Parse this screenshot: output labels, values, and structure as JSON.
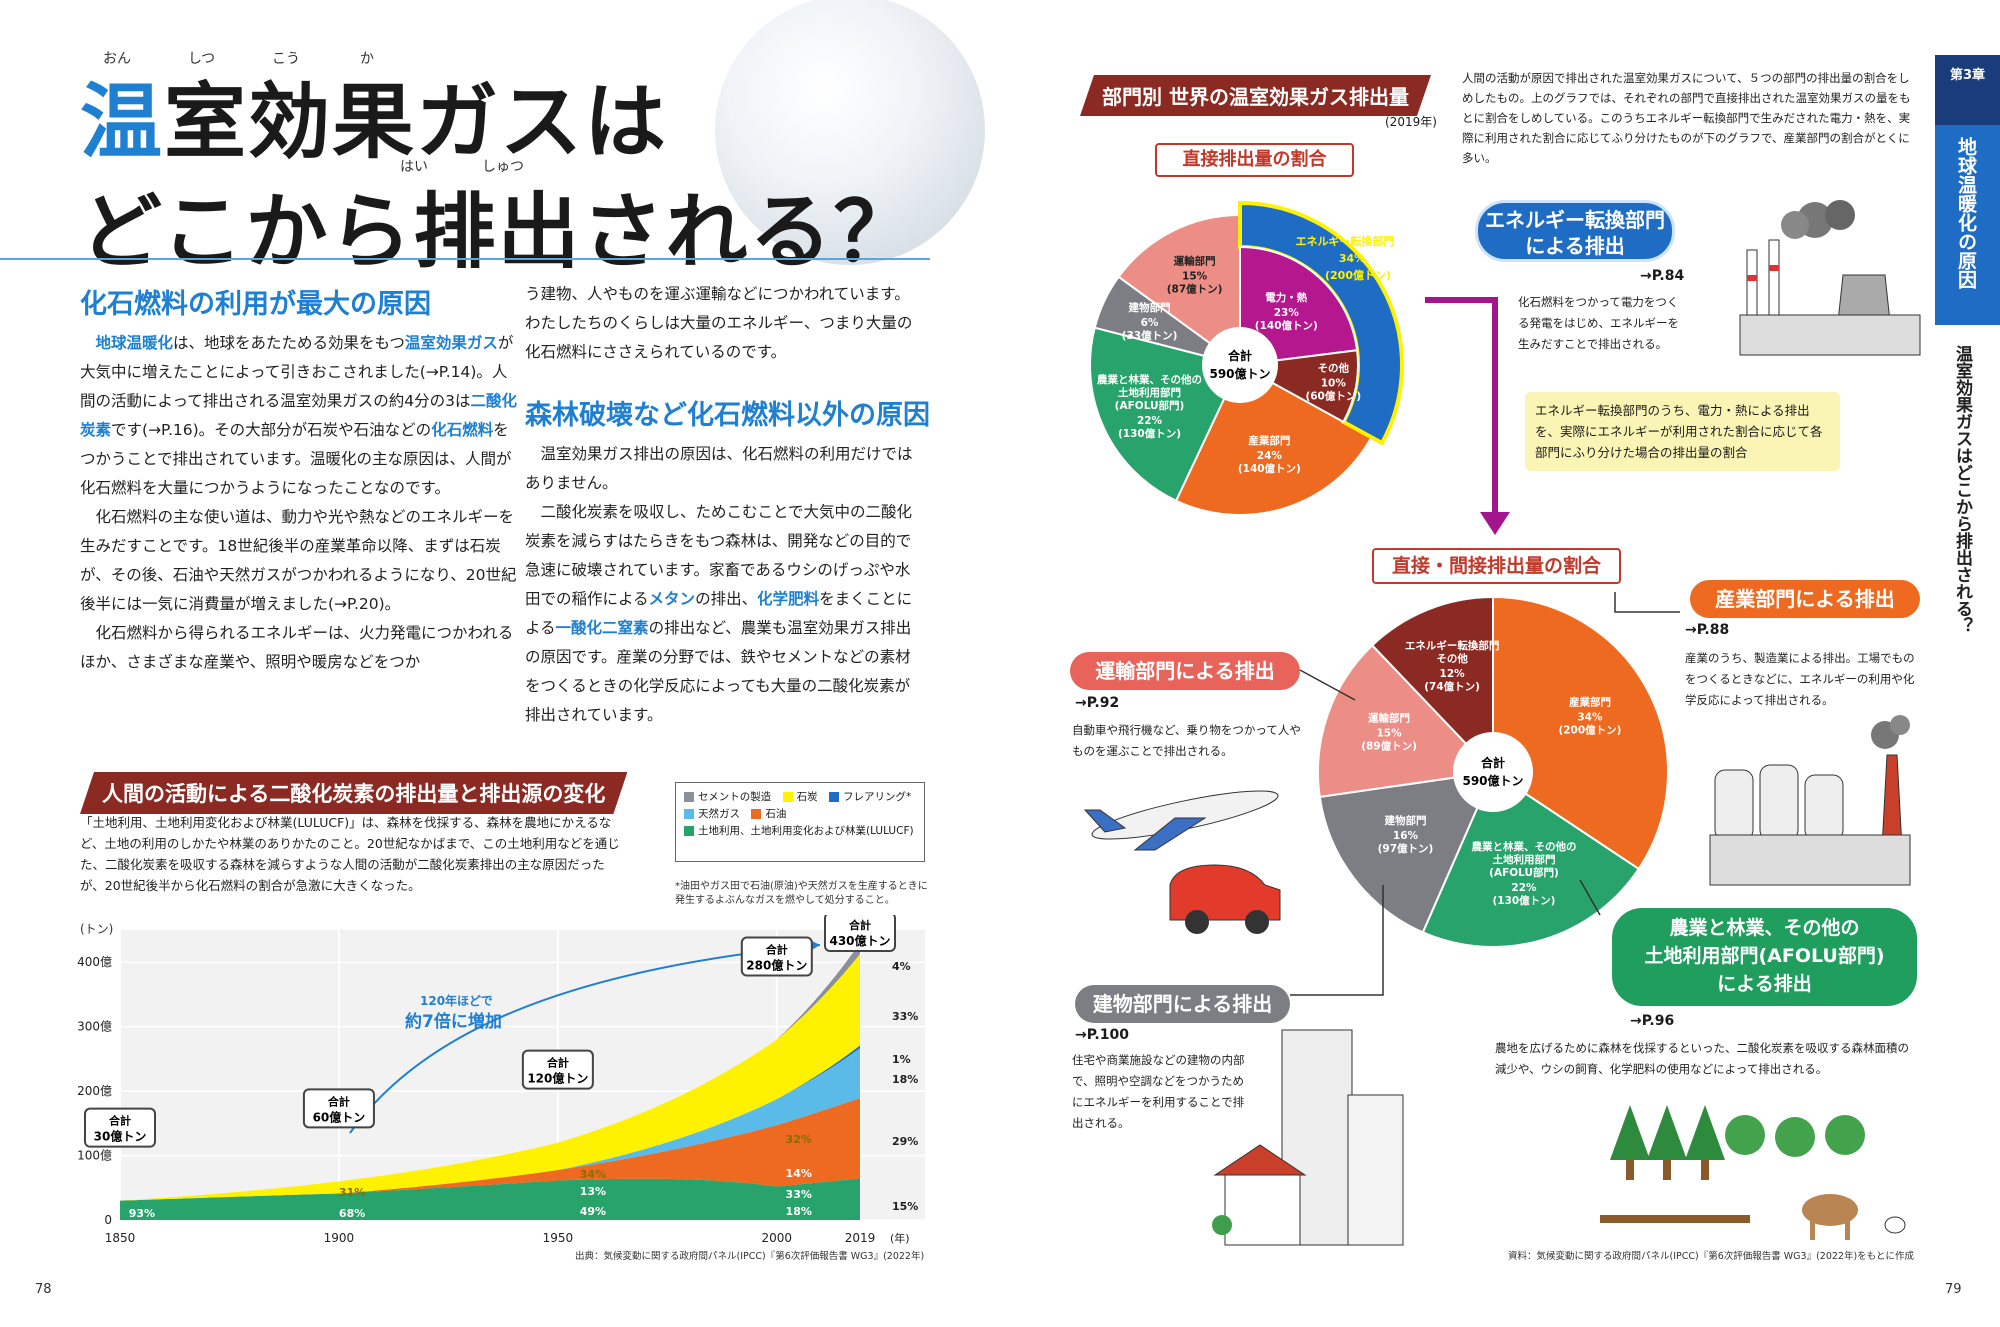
{
  "title": {
    "line1_blue": "温",
    "line1_rest": "室効果ガスは",
    "line2": "どこから排出される？",
    "rubies": [
      "おん",
      "しつ",
      "こう",
      "か",
      "はい",
      "しゅつ"
    ]
  },
  "section1": {
    "heading": "化石燃料の利用が最大の原因",
    "p1a": "地球温暖化",
    "p1b": "は、地球をあたためる効果をもつ",
    "p1c": "温室効果ガス",
    "p1d": "が大気中に増えたことによって引きおこされました(→P.14)。人間の活動によって排出される温室効果ガスの約4分の3は",
    "p1e": "二酸化炭素",
    "p1f": "です(→P.16)。その大部分が石炭や石油などの",
    "p1g": "化石燃料",
    "p1h": "をつかうことで排出されています。温暖化の主な原因は、人間が化石燃料を大量につかうようになったことなのです。",
    "p2": "化石燃料の主な使い道は、動力や光や熱などのエネルギーを生みだすことです。18世紀後半の産業革命以降、まずは石炭が、その後、石油や天然ガスがつかわれるようになり、20世紀後半には一気に消費量が増えました(→P.20)。",
    "p3": "化石燃料から得られるエネルギーは、火力発電につかわれるほか、さまざまな産業や、照明や暖房などをつか",
    "p3b": "う建物、人やものを運ぶ運輸などにつかわれています。わたしたちのくらしは大量のエネルギー、つまり大量の化石燃料にささえられているのです。"
  },
  "section2": {
    "heading": "森林破壊など化石燃料以外の原因",
    "p1": "温室効果ガス排出の原因は、化石燃料の利用だけではありません。",
    "p2a": "二酸化炭素を吸収し、ためこむことで大気中の二酸化炭素を減らすはたらきをもつ森林は、開発などの目的で急速に破壊されています。家畜であるウシのげっぷや水田での稲作による",
    "p2b": "メタン",
    "p2c": "の排出、",
    "p2d": "化学肥料",
    "p2e": "をまくことによる",
    "p2f": "一酸化二窒素",
    "p2g": "の排出など、農業も温室効果ガス排出の原因です。産業の分野では、鉄やセメントなどの素材をつくるときの化学反応によっても大量の二酸化炭素が排出されています。"
  },
  "co2_chart": {
    "banner": "人間の活動による二酸化炭素の排出量と排出源の変化",
    "desc": "「土地利用、土地利用変化および林業(LULUCF)」は、森林を伐採する、森林を農地にかえるなど、土地の利用のしかたや林業のありかたのこと。20世紀なかばまで、この土地利用などを通じた、二酸化炭素を吸収する森林を減らすような人間の活動が二酸化炭素排出の主な原因だったが、20世紀後半から化石燃料の割合が急激に大きくなった。",
    "legend": [
      {
        "label": "セメントの製造",
        "color": "#8a8f99"
      },
      {
        "label": "石炭",
        "color": "#fff200"
      },
      {
        "label": "フレアリング*",
        "color": "#1f6cc4"
      },
      {
        "label": "天然ガス",
        "color": "#5bbbe8"
      },
      {
        "label": "石油",
        "color": "#ef6a21"
      },
      {
        "label": "土地利用、土地利用変化および林業(LULUCF)",
        "color": "#27a36b"
      }
    ],
    "legend_note": "*油田やガス田で石油(原油)や天然ガスを生産するときに発生するよぶんなガスを燃やして処分すること。",
    "yunit": "(トン)",
    "yticks": [
      "400億",
      "300億",
      "200億",
      "100億",
      "0"
    ],
    "xticks": [
      "1850",
      "1900",
      "1950",
      "2000",
      "2019"
    ],
    "xunit": "(年)",
    "callouts": [
      {
        "l1": "合計",
        "l2": "30億トン"
      },
      {
        "l1": "合計",
        "l2": "60億トン"
      },
      {
        "l1": "合計",
        "l2": "120億トン"
      },
      {
        "l1": "合計",
        "l2": "280億トン"
      },
      {
        "l1": "合計",
        "l2": "430億トン"
      }
    ],
    "arrow_note1": "120年ほどで",
    "arrow_note2": "約7倍に増加",
    "inner_pcts": [
      "93%",
      "31%",
      "68%",
      "34%",
      "13%",
      "49%",
      "32%",
      "14%",
      "33%",
      "18%"
    ],
    "right_pcts": [
      "4%",
      "33%",
      "1%",
      "18%",
      "29%",
      "15%"
    ],
    "source": "出典：気候変動に関する政府間パネル(IPCC)『第6次評価報告書 WG3』(2022年)",
    "chart_data": {
      "type": "area",
      "x": [
        1850,
        1900,
        1950,
        2000,
        2019
      ],
      "totals": [
        30,
        60,
        120,
        280,
        430
      ],
      "unit": "億トン",
      "ylim": [
        0,
        450
      ],
      "series": [
        {
          "name": "土地利用、土地利用変化および林業(LULUCF)",
          "pct": [
            93,
            68,
            49,
            18,
            15
          ]
        },
        {
          "name": "石油",
          "pct": [
            null,
            null,
            13,
            33,
            29
          ]
        },
        {
          "name": "天然ガス",
          "pct": [
            null,
            null,
            null,
            14,
            18
          ]
        },
        {
          "name": "フレアリング",
          "pct": [
            null,
            null,
            null,
            null,
            1
          ]
        },
        {
          "name": "石炭",
          "pct": [
            null,
            31,
            34,
            32,
            33
          ]
        },
        {
          "name": "セメントの製造",
          "pct": [
            null,
            null,
            null,
            null,
            4
          ]
        }
      ]
    }
  },
  "right": {
    "banner": "部門別 世界の温室効果ガス排出量",
    "year": "(2019年)",
    "intro": "人間の活動が原因で排出された温室効果ガスについて、５つの部門の排出量の割合をしめしたもの。上のグラフでは、それぞれの部門で直接排出された温室効果ガスの量をもとに割合をしめしている。このうちエネルギー転換部門で生みだされた電力・熱を、実際に利用された割合に応じてふり分けたものが下のグラフで、産業部門の割合がとくに多い。",
    "pie1_head": "直接排出量の割合",
    "pie2_head": "直接・間接排出量の割合",
    "total_l1": "合計",
    "total_l2": "590億トン",
    "pie1": [
      {
        "name": "エネルギー転換部門",
        "pct": "34%",
        "amt": "(200億トン)",
        "color": "#1f6cc4"
      },
      {
        "name": "電力・熱",
        "pct": "23%",
        "amt": "(140億トン)",
        "color": "#b5178f"
      },
      {
        "name": "その他",
        "pct": "10%",
        "amt": "(60億トン)",
        "color": "#8b2a22"
      },
      {
        "name": "産業部門",
        "pct": "24%",
        "amt": "(140億トン)",
        "color": "#ef6a21"
      },
      {
        "name": "農業と林業、その他の土地利用部門(AFOLU部門)",
        "pct": "22%",
        "amt": "(130億トン)",
        "color": "#27a36b"
      },
      {
        "name": "建物部門",
        "pct": "6%",
        "amt": "(33億トン)",
        "color": "#7d7d84"
      },
      {
        "name": "運輸部門",
        "pct": "15%",
        "amt": "(87億トン)",
        "color": "#ec8d86"
      }
    ],
    "pie2": [
      {
        "name": "産業部門",
        "pct": "34%",
        "amt": "(200億トン)",
        "color": "#ef6a21"
      },
      {
        "name": "農業と林業、その他の土地利用部門(AFOLU部門)",
        "pct": "22%",
        "amt": "(130億トン)",
        "color": "#27a36b"
      },
      {
        "name": "建物部門",
        "pct": "16%",
        "amt": "(97億トン)",
        "color": "#7d7d84"
      },
      {
        "name": "運輸部門",
        "pct": "15%",
        "amt": "(89億トン)",
        "color": "#ec8d86"
      },
      {
        "name": "エネルギー転換部門 その他",
        "pct": "12%",
        "amt": "(74億トン)",
        "color": "#8b2a22"
      }
    ],
    "energy_pill": "エネルギー転換部門による排出",
    "energy_ref": "→P.84",
    "energy_desc": "化石燃料をつかって電力をつくる発電をはじめ、エネルギーを生みだすことで排出される。",
    "yellow_note": "エネルギー転換部門のうち、電力・熱による排出を、実際にエネルギーが利用された割合に応じて各部門にふり分けた場合の排出量の割合",
    "transport_pill": "運輸部門による排出",
    "transport_ref": "→P.92",
    "transport_desc": "自動車や飛行機など、乗り物をつかって人やものを運ぶことで排出される。",
    "industry_pill": "産業部門による排出",
    "industry_ref": "→P.88",
    "industry_desc": "産業のうち、製造業による排出。工場でものをつくるときなどに、エネルギーの利用や化学反応によって排出される。",
    "building_pill": "建物部門による排出",
    "building_ref": "→P.100",
    "building_desc": "住宅や商業施設などの建物の内部で、照明や空調などをつかうためにエネルギーを利用することで排出される。",
    "afolu_pill_l1": "農業と林業、その他の",
    "afolu_pill_l2": "土地利用部門(AFOLU部門)",
    "afolu_pill_l3": "による排出",
    "afolu_ref": "→P.96",
    "afolu_desc": "農地を広げるために森林を伐採するといった、二酸化炭素を吸収する森林面積の減少や、ウシの飼育、化学肥料の使用などによって排出される。",
    "source": "資料：気候変動に関する政府間パネル(IPCC)『第6次評価報告書 WG3』(2022年)をもとに作成"
  },
  "sidebar": {
    "chapter": "第3章",
    "tab_text": "地球温暖化の原因",
    "sub_text": "温室効果ガスはどこから排出される？"
  },
  "pages": {
    "left": "78",
    "right": "79"
  }
}
